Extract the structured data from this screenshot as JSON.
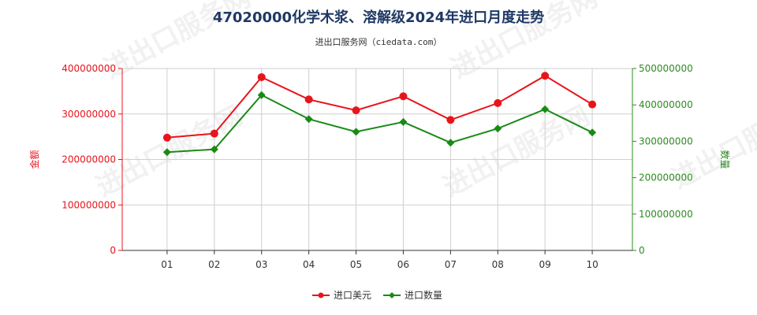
{
  "chart_data": {
    "type": "line",
    "title": "47020000化学木浆、溶解级2024年进口月度走势",
    "subtitle": "进出口服务网（ciedata.com）",
    "categories": [
      "01",
      "02",
      "03",
      "04",
      "05",
      "06",
      "07",
      "08",
      "09",
      "10"
    ],
    "y_left": {
      "label": "金额",
      "range": [
        0,
        400000000
      ],
      "ticks": [
        0,
        100000000,
        200000000,
        300000000,
        400000000
      ],
      "color": "#e8141b"
    },
    "y_right": {
      "label": "数量",
      "range": [
        0,
        500000000
      ],
      "ticks": [
        0,
        100000000,
        200000000,
        300000000,
        400000000,
        500000000
      ],
      "color": "#2e8b22"
    },
    "series": [
      {
        "name": "进口美元",
        "axis": "left",
        "color": "#e8141b",
        "marker": "circle",
        "values": [
          248000000,
          257000000,
          381000000,
          332000000,
          308000000,
          339000000,
          287000000,
          324000000,
          384000000,
          321000000
        ]
      },
      {
        "name": "进口数量",
        "axis": "right",
        "color": "#1a8a16",
        "marker": "diamond",
        "values": [
          270000000,
          278000000,
          427000000,
          361000000,
          326000000,
          353000000,
          296000000,
          335000000,
          388000000,
          324000000
        ]
      }
    ],
    "grid": true,
    "legend": "bottom-center",
    "watermark": "进出口服务网"
  }
}
